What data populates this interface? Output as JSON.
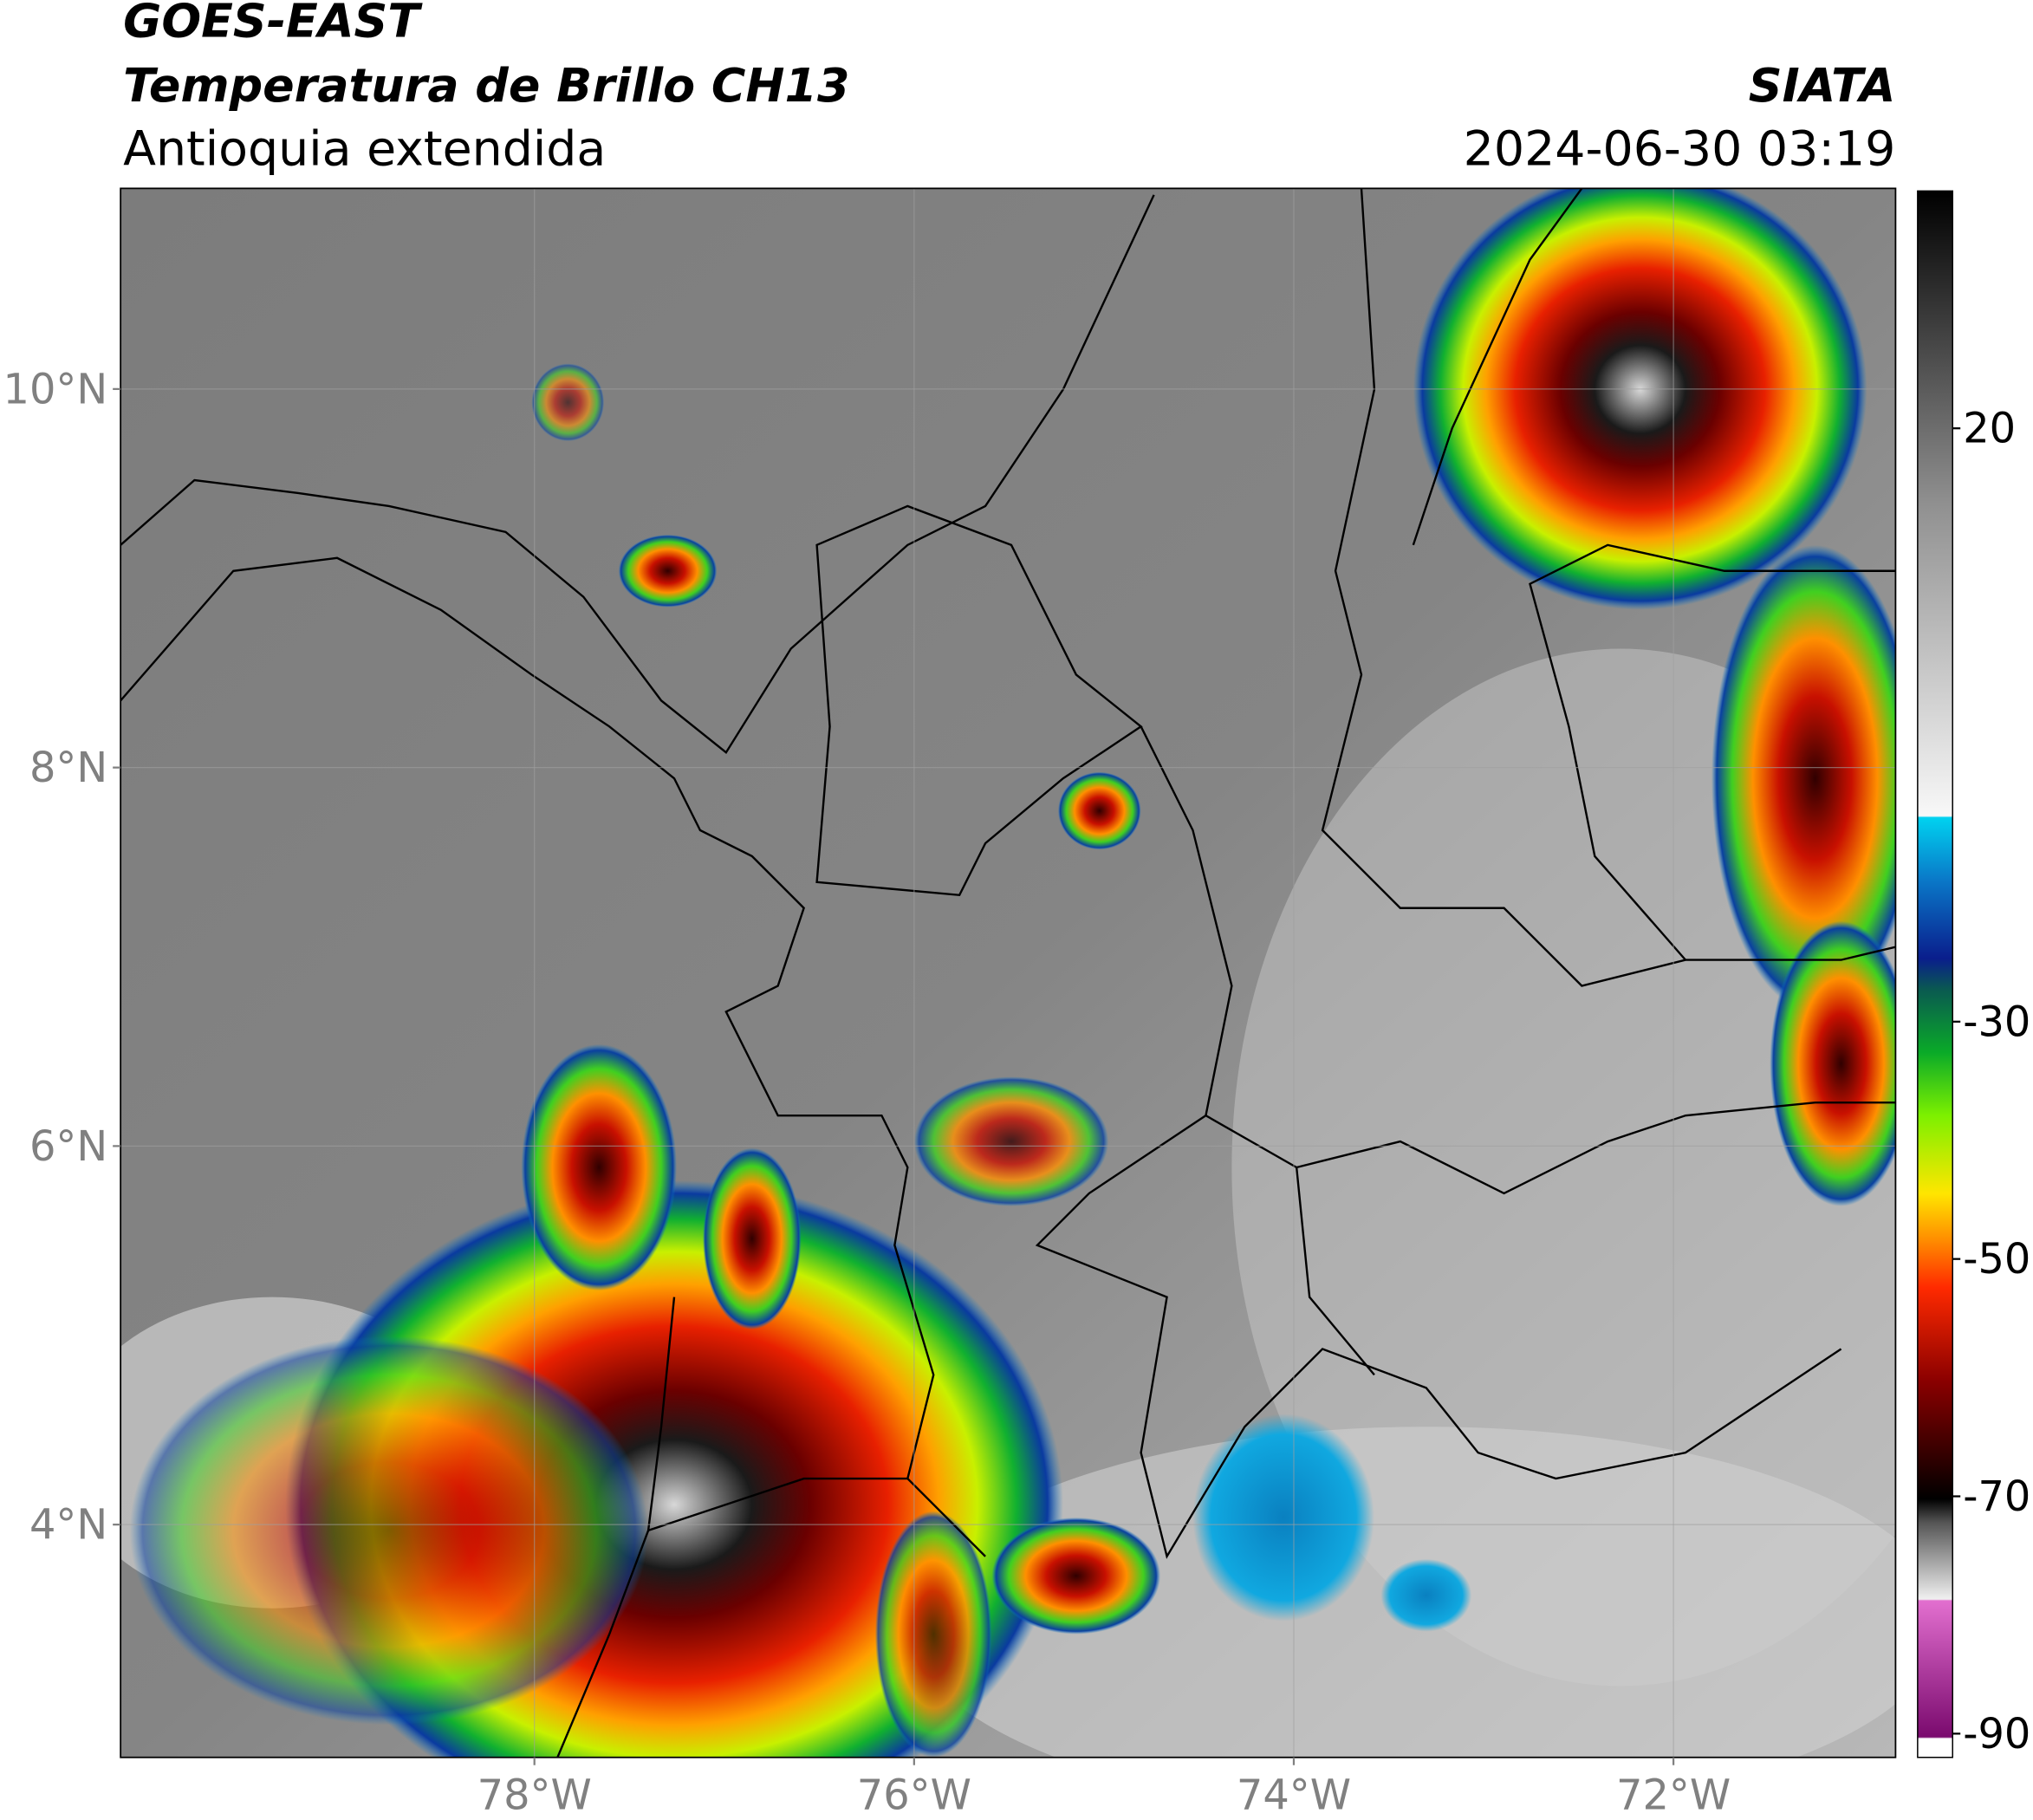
{
  "header": {
    "title_1": "GOES-EAST",
    "title_2": "Temperatura de Brillo CH13",
    "subtitle": "Antioquia extendida",
    "agency": "SIATA",
    "timestamp": "2024-06-30 03:19"
  },
  "map": {
    "xlim": [
      -80.18,
      -70.83
    ],
    "ylim": [
      2.77,
      11.06
    ],
    "lon_ticks": [
      {
        "value": -78,
        "label": "78°W"
      },
      {
        "value": -76,
        "label": "76°W"
      },
      {
        "value": -74,
        "label": "74°W"
      },
      {
        "value": -72,
        "label": "72°W"
      }
    ],
    "lat_ticks": [
      {
        "value": 4,
        "label": "4°N"
      },
      {
        "value": 6,
        "label": "6°N"
      },
      {
        "value": 8,
        "label": "8°N"
      },
      {
        "value": 10,
        "label": "10°N"
      }
    ]
  },
  "colorbar": {
    "range": [
      -92,
      40
    ],
    "ticks": [
      20,
      -30,
      -50,
      -70,
      -90
    ]
  }
}
